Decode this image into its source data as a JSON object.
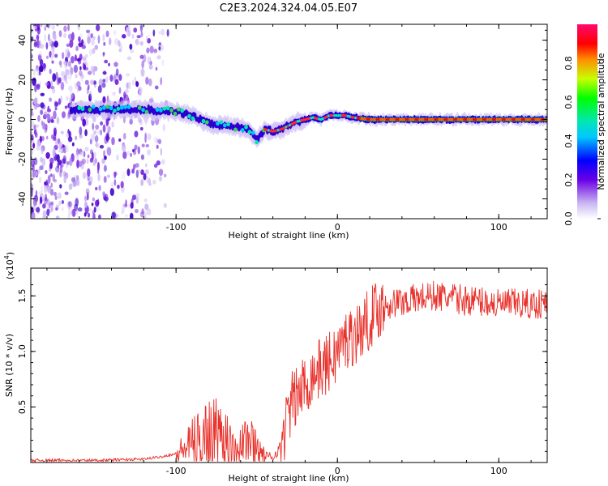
{
  "title": "C2E3.2024.324.04.05.E07",
  "chart_data": [
    {
      "type": "heatmap",
      "xlabel": "Height of straight line (km)",
      "ylabel": "Frequency (Hz)",
      "xlim": [
        -190,
        130
      ],
      "ylim": [
        -50,
        48
      ],
      "x_ticks": [
        -100,
        0,
        100
      ],
      "x_tick_labels": [
        "-100",
        "0",
        "100"
      ],
      "y_ticks": [
        -40,
        -20,
        0,
        20,
        40
      ],
      "y_tick_labels": [
        "-40",
        "-20",
        "0",
        "20",
        "40"
      ],
      "colorbar": {
        "label": "Normalized spectral amplitude",
        "range": [
          0,
          1
        ],
        "ticks": [
          0.0,
          0.2,
          0.4,
          0.6,
          0.8
        ],
        "tick_labels": [
          "0.0",
          "0.2",
          "0.4",
          "0.6",
          "0.8"
        ]
      },
      "ridge": {
        "x": [
          -160,
          -140,
          -120,
          -100,
          -90,
          -80,
          -70,
          -60,
          -55,
          -50,
          -45,
          -40,
          -35,
          -30,
          -25,
          -20,
          -15,
          -10,
          -5,
          0,
          5,
          10,
          20,
          40,
          60,
          80,
          100,
          130
        ],
        "frequency": [
          5,
          5,
          5,
          4,
          2,
          -2,
          -3,
          -4,
          -5,
          -10,
          -5,
          -6,
          -5,
          -3,
          -1,
          0,
          1,
          0,
          2,
          2,
          2,
          1,
          0,
          0,
          0,
          0,
          0,
          0
        ]
      },
      "noise_region_x": [
        -190,
        -105
      ]
    },
    {
      "type": "line",
      "xlabel": "Height of straight line (km)",
      "ylabel": "SNR (10 * v/v)",
      "scale_note": "(x10^4)",
      "xlim": [
        -190,
        130
      ],
      "ylim": [
        0,
        1.75
      ],
      "x_ticks": [
        -100,
        0,
        100
      ],
      "x_tick_labels": [
        "-100",
        "0",
        "100"
      ],
      "y_ticks": [
        0.5,
        1.0,
        1.5
      ],
      "y_tick_labels": [
        "0.5",
        "1.0",
        "1.5"
      ],
      "series": [
        {
          "color": "#e8312b",
          "x": [
            -190,
            -150,
            -120,
            -110,
            -100,
            -95,
            -90,
            -85,
            -80,
            -75,
            -70,
            -65,
            -60,
            -55,
            -50,
            -45,
            -40,
            -35,
            -32,
            -28,
            -25,
            -20,
            -15,
            -10,
            -5,
            0,
            5,
            10,
            15,
            20,
            25,
            30,
            40,
            50,
            60,
            70,
            80,
            90,
            100,
            110,
            120,
            130
          ],
          "values": [
            0.02,
            0.02,
            0.03,
            0.05,
            0.08,
            0.12,
            0.18,
            0.22,
            0.3,
            0.28,
            0.25,
            0.22,
            0.25,
            0.2,
            0.15,
            0.05,
            0.05,
            0.15,
            0.35,
            0.55,
            0.6,
            0.7,
            0.8,
            0.85,
            0.9,
            1.0,
            1.1,
            1.15,
            1.2,
            1.3,
            1.38,
            1.42,
            1.45,
            1.48,
            1.5,
            1.48,
            1.46,
            1.45,
            1.42,
            1.43,
            1.42,
            1.44
          ]
        }
      ]
    }
  ]
}
